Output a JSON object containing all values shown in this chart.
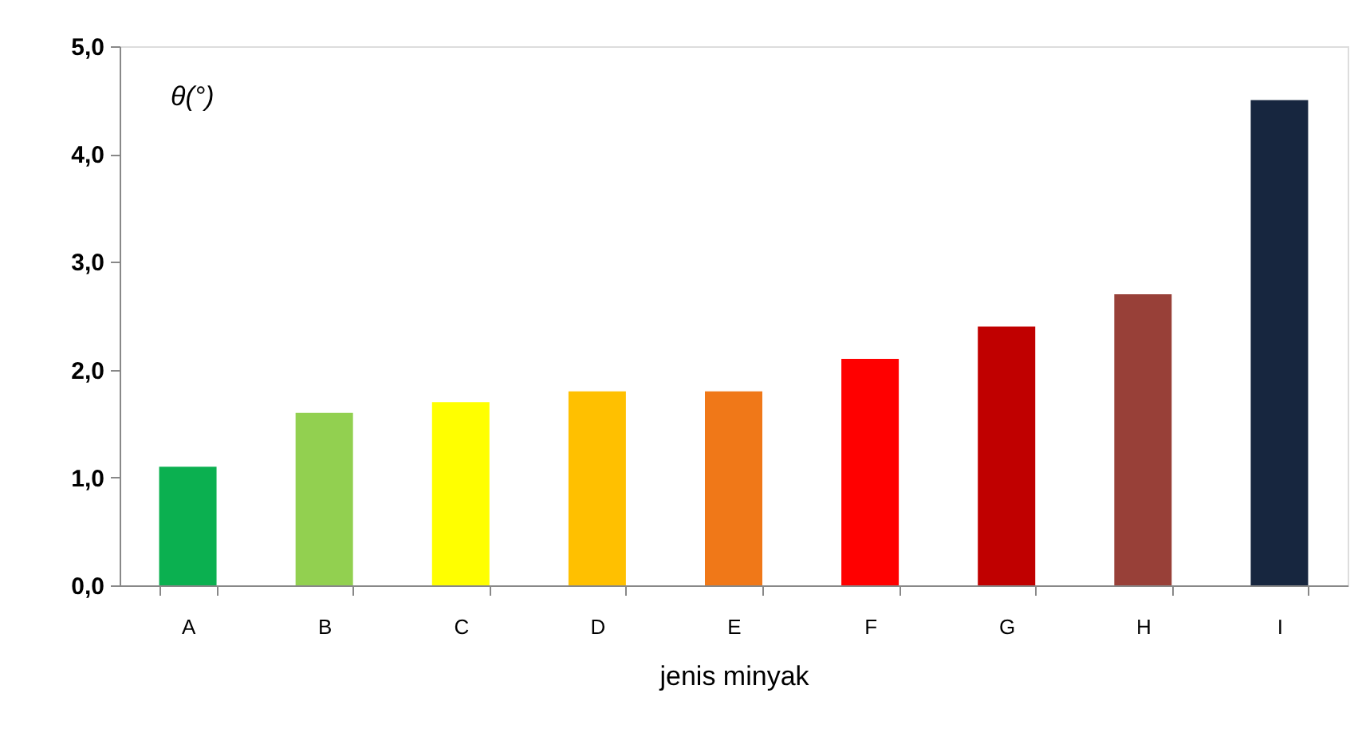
{
  "chart_data": {
    "type": "bar",
    "xlabel": "jenis minyak",
    "ylabel": "θ(°)",
    "categories": [
      "A",
      "B",
      "C",
      "D",
      "E",
      "F",
      "G",
      "H",
      "I"
    ],
    "values": [
      1.1,
      1.6,
      1.7,
      1.8,
      1.8,
      2.1,
      2.4,
      2.7,
      4.5
    ],
    "colors": [
      "#0bb050",
      "#92d050",
      "#ffff00",
      "#ffc000",
      "#f07818",
      "#ff0000",
      "#c00000",
      "#984038",
      "#17263f"
    ],
    "ylim": [
      0,
      5
    ],
    "yticks": [
      {
        "value": 0,
        "label": "0,0"
      },
      {
        "value": 1,
        "label": "1,0"
      },
      {
        "value": 2,
        "label": "2,0"
      },
      {
        "value": 3,
        "label": "3,0"
      },
      {
        "value": 4,
        "label": "4,0"
      },
      {
        "value": 5,
        "label": "5,0"
      }
    ],
    "grid": false,
    "legend": false
  }
}
